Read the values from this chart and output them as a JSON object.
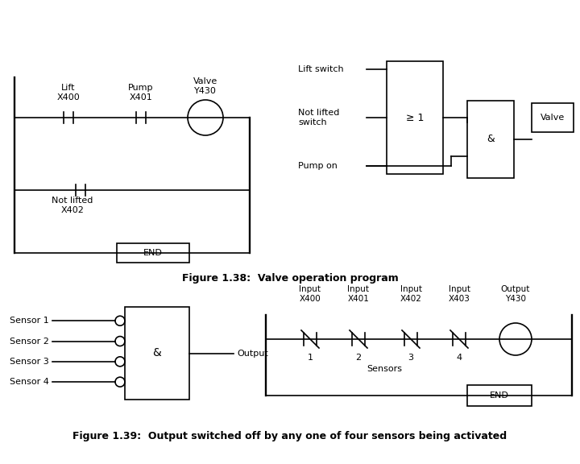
{
  "bg_color": "#ffffff",
  "fig_caption1": "Figure 1.38:  Valve operation program",
  "fig_caption2": "Figure 1.39:  Output switched off by any one of four sensors being activated",
  "top_left": {
    "label_lift": "Lift\nX400",
    "label_pump": "Pump\nX401",
    "label_valve": "Valve\nY430",
    "label_notlifted": "Not lifted\nX402",
    "label_end": "END"
  },
  "top_right": {
    "label_lift_switch": "Lift switch",
    "label_notlifted_switch": "Not lifted\nswitch",
    "label_pump_on": "Pump on",
    "gate1_label": "≥ 1",
    "gate2_label": "&",
    "output_label": "Valve"
  },
  "bottom_left": {
    "sensors": [
      "Sensor 1",
      "Sensor 2",
      "Sensor 3",
      "Sensor 4"
    ],
    "gate_label": "&",
    "output_label": "Output"
  },
  "bottom_right": {
    "col_labels": [
      "Input\nX400",
      "Input\nX401",
      "Input\nX402",
      "Input\nX403",
      "Output\nY430"
    ],
    "sensor_labels": [
      "1",
      "2",
      "3",
      "4"
    ],
    "sensors_label": "Sensors",
    "end_label": "END"
  }
}
